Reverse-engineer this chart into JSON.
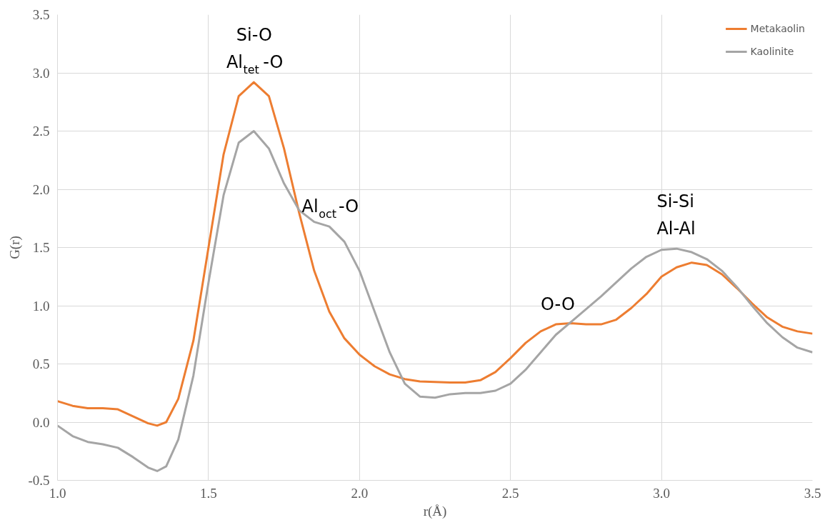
{
  "chart_data": {
    "type": "line",
    "xlabel": "r(Å)",
    "ylabel": "G(r)",
    "xlim": [
      1.0,
      3.5
    ],
    "ylim": [
      -0.5,
      3.5
    ],
    "xticks": [
      {
        "value": 1.0,
        "label": "1.0"
      },
      {
        "value": 1.5,
        "label": "1.5"
      },
      {
        "value": 2.0,
        "label": "2.0"
      },
      {
        "value": 2.5,
        "label": "2.5"
      },
      {
        "value": 3.0,
        "label": "3.0"
      },
      {
        "value": 3.5,
        "label": "3.5"
      }
    ],
    "yticks": [
      {
        "value": -0.5,
        "label": "-0.5"
      },
      {
        "value": 0.0,
        "label": "0.0"
      },
      {
        "value": 0.5,
        "label": "0.5"
      },
      {
        "value": 1.0,
        "label": "1.0"
      },
      {
        "value": 1.5,
        "label": "1.5"
      },
      {
        "value": 2.0,
        "label": "2.0"
      },
      {
        "value": 2.5,
        "label": "2.5"
      },
      {
        "value": 3.0,
        "label": "3.0"
      },
      {
        "value": 3.5,
        "label": "3.5"
      }
    ],
    "grid": true,
    "legend": "top right",
    "marker": "none",
    "line_style": "solid",
    "x": [
      1.0,
      1.05,
      1.1,
      1.15,
      1.2,
      1.25,
      1.3,
      1.33,
      1.36,
      1.4,
      1.45,
      1.5,
      1.55,
      1.6,
      1.65,
      1.7,
      1.75,
      1.8,
      1.85,
      1.9,
      1.95,
      2.0,
      2.05,
      2.1,
      2.15,
      2.2,
      2.25,
      2.3,
      2.35,
      2.4,
      2.45,
      2.5,
      2.55,
      2.6,
      2.65,
      2.7,
      2.75,
      2.8,
      2.85,
      2.9,
      2.95,
      3.0,
      3.05,
      3.1,
      3.15,
      3.2,
      3.25,
      3.3,
      3.35,
      3.4,
      3.45,
      3.5
    ],
    "series": [
      {
        "name": "Metakaolin",
        "color": "#ed7d31",
        "values": [
          0.18,
          0.14,
          0.12,
          0.12,
          0.11,
          0.05,
          -0.01,
          -0.03,
          0.0,
          0.2,
          0.7,
          1.5,
          2.3,
          2.8,
          2.92,
          2.8,
          2.35,
          1.8,
          1.3,
          0.95,
          0.72,
          0.58,
          0.48,
          0.41,
          0.37,
          0.35,
          0.345,
          0.34,
          0.34,
          0.36,
          0.43,
          0.55,
          0.68,
          0.78,
          0.84,
          0.85,
          0.84,
          0.84,
          0.88,
          0.98,
          1.1,
          1.25,
          1.33,
          1.37,
          1.35,
          1.27,
          1.15,
          1.02,
          0.9,
          0.82,
          0.78,
          0.76
        ]
      },
      {
        "name": "Kaolinite",
        "color": "#a5a5a5",
        "values": [
          -0.03,
          -0.12,
          -0.17,
          -0.19,
          -0.22,
          -0.3,
          -0.39,
          -0.42,
          -0.38,
          -0.15,
          0.4,
          1.2,
          1.95,
          2.4,
          2.5,
          2.35,
          2.05,
          1.82,
          1.72,
          1.68,
          1.55,
          1.3,
          0.95,
          0.6,
          0.33,
          0.22,
          0.21,
          0.24,
          0.25,
          0.25,
          0.27,
          0.33,
          0.45,
          0.6,
          0.75,
          0.86,
          0.97,
          1.08,
          1.2,
          1.32,
          1.42,
          1.48,
          1.49,
          1.46,
          1.4,
          1.3,
          1.16,
          1.0,
          0.85,
          0.73,
          0.64,
          0.6
        ]
      }
    ],
    "annotations": [
      {
        "text": "Si-O\nAl$_{tet}$-O",
        "x": 1.65,
        "y": 2.92
      },
      {
        "text": "Al$_{oct}$-O",
        "x": 1.9,
        "y": 1.68
      },
      {
        "text": "O-O",
        "x": 2.65,
        "y": 0.84
      },
      {
        "text": "Si-Si\nAl-Al",
        "x": 3.05,
        "y": 1.49
      }
    ]
  }
}
